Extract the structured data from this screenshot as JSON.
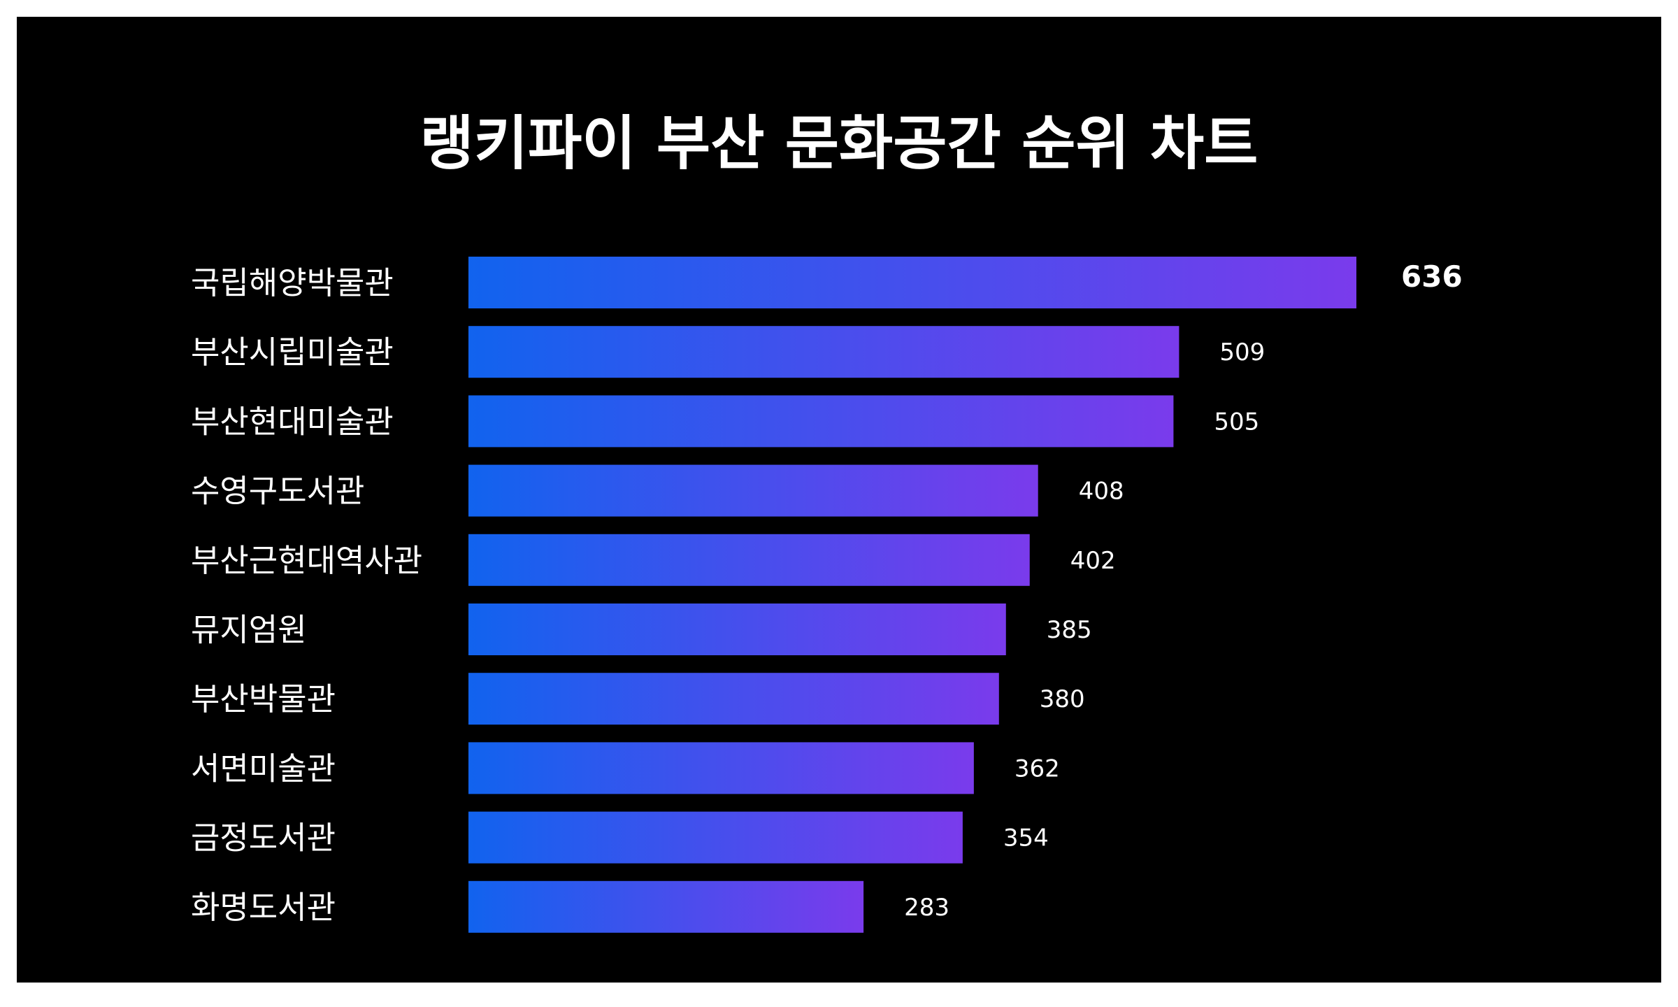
{
  "colors": {
    "background": "#000000",
    "frame": "#ffffff",
    "bar_start": "#1163EE",
    "bar_end": "#7A3BEC",
    "text": "#ffffff"
  },
  "chart_data": {
    "type": "bar",
    "orientation": "horizontal",
    "title": "랭키파이 부산 문화공간 순위 차트",
    "categories": [
      "국립해양박물관",
      "부산시립미술관",
      "부산현대미술관",
      "수영구도서관",
      "부산근현대역사관",
      "뮤지엄원",
      "부산박물관",
      "서면미술관",
      "금정도서관",
      "화명도서관"
    ],
    "values": [
      636,
      509,
      505,
      408,
      402,
      385,
      380,
      362,
      354,
      283
    ],
    "xlim": [
      0,
      636
    ],
    "grid": false,
    "legend": "none",
    "data_labels": true,
    "highlight_top": true
  }
}
